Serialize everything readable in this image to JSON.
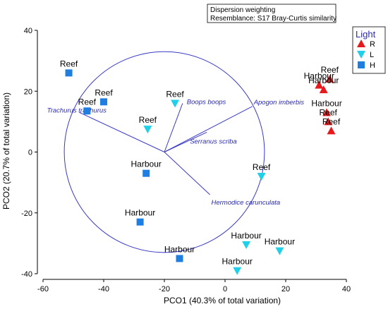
{
  "chart_data": {
    "type": "scatter",
    "xlabel": "PCO1 (40.3% of total variation)",
    "ylabel": "PCO2 (20.7% of total variation)",
    "xlim": [
      -60,
      40
    ],
    "ylim": [
      -40,
      40
    ],
    "xticks": [
      -60,
      -40,
      -20,
      0,
      20,
      40
    ],
    "yticks": [
      -40,
      -20,
      0,
      20,
      40
    ],
    "info_box": [
      "Dispersion weighting",
      "Resemblance: S17 Bray-Curtis similarity"
    ],
    "legend": {
      "title": "Light",
      "position": "top-right",
      "items": [
        {
          "label": "R",
          "shape": "triangle-up",
          "color": "#e8191c"
        },
        {
          "label": "L",
          "shape": "triangle-down",
          "color": "#1fd0e8"
        },
        {
          "label": "H",
          "shape": "square",
          "color": "#1f7fe0"
        }
      ]
    },
    "series": [
      {
        "name": "R",
        "shape": "triangle-up",
        "color": "#e8191c",
        "points": [
          {
            "x": 31,
            "y": 22,
            "label": "Harbour"
          },
          {
            "x": 34.5,
            "y": 24,
            "label": "Reef"
          },
          {
            "x": 32.5,
            "y": 20.5,
            "label": "Harbour"
          },
          {
            "x": 33.5,
            "y": 13,
            "label": "Harbour"
          },
          {
            "x": 34,
            "y": 10,
            "label": "Reef"
          },
          {
            "x": 35,
            "y": 7,
            "label": "Reef"
          }
        ]
      },
      {
        "name": "L",
        "shape": "triangle-down",
        "color": "#1fd0e8",
        "points": [
          {
            "x": -16.5,
            "y": 16,
            "label": "Reef"
          },
          {
            "x": -25.5,
            "y": 7.5,
            "label": "Reef"
          },
          {
            "x": 12,
            "y": -8,
            "label": "Reef"
          },
          {
            "x": 7,
            "y": -30.5,
            "label": "Harbour"
          },
          {
            "x": 18,
            "y": -32.5,
            "label": "Harbour"
          },
          {
            "x": 4,
            "y": -39,
            "label": "Harbour"
          }
        ]
      },
      {
        "name": "H",
        "shape": "square",
        "color": "#1f7fe0",
        "points": [
          {
            "x": -51.5,
            "y": 26,
            "label": "Reef"
          },
          {
            "x": -45.5,
            "y": 13.5,
            "label": "Reef"
          },
          {
            "x": -40,
            "y": 16.5,
            "label": "Reef"
          },
          {
            "x": -26,
            "y": -7,
            "label": "Harbour"
          },
          {
            "x": -28,
            "y": -23,
            "label": "Harbour"
          },
          {
            "x": -15,
            "y": -35,
            "label": "Harbour"
          }
        ]
      }
    ],
    "vectors_origin": [
      -20,
      0
    ],
    "vectors": [
      {
        "name": "Trachurus trachurus",
        "x": -48,
        "y": 13
      },
      {
        "name": "Boops boops",
        "x": -14,
        "y": 16
      },
      {
        "name": "Apogon imberbis",
        "x": 9,
        "y": 15
      },
      {
        "name": "Serranus scriba",
        "x": -6,
        "y": 6.5
      },
      {
        "name": "Hermodice carunculata",
        "x": -5,
        "y": -14
      }
    ],
    "circle": {
      "center": [
        -20,
        0
      ],
      "radius": 33
    }
  }
}
